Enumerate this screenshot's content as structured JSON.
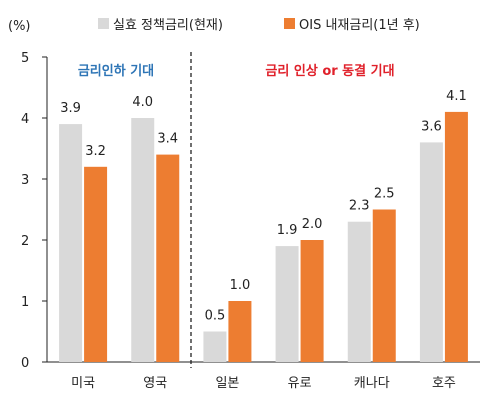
{
  "chart_data": {
    "type": "bar",
    "unit_label": "(%)",
    "categories": [
      "미국",
      "영국",
      "일본",
      "유로",
      "캐나다",
      "호주"
    ],
    "series": [
      {
        "name": "실효 정책금리(현재)",
        "color": "#d9d9d9",
        "values": [
          3.9,
          4.0,
          0.5,
          1.9,
          2.3,
          3.6
        ]
      },
      {
        "name": "OIS 내재금리(1년 후)",
        "color": "#ed7d31",
        "values": [
          3.2,
          3.4,
          1.0,
          2.0,
          2.5,
          4.1
        ]
      }
    ],
    "data_labels": [
      [
        "3.9",
        "4.0",
        "0.5",
        "1.9",
        "2.3",
        "3.6"
      ],
      [
        "3.2",
        "3.4",
        "1.0",
        "2.0",
        "2.5",
        "4.1"
      ]
    ],
    "ylim": [
      0,
      5
    ],
    "yticks": [
      0,
      1,
      2,
      3,
      4,
      5
    ],
    "grid": false,
    "legend_position": "top",
    "annotations": [
      {
        "text": "금리인하 기대",
        "color": "#2e75b6"
      },
      {
        "text": "금리 인상 or 동결 기대",
        "color": "#e0202a"
      }
    ],
    "divider": "dashed vertical line between 영국 and 일본"
  }
}
